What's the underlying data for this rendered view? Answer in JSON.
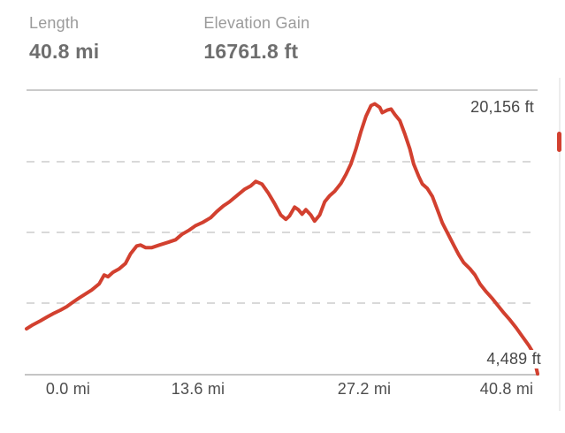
{
  "header": {
    "stats": [
      {
        "label": "Length",
        "value": "40.8 mi"
      },
      {
        "label": "Elevation Gain",
        "value": "16761.8 ft"
      }
    ]
  },
  "chart": {
    "max_label": "20,156 ft",
    "min_label": "4,489 ft",
    "x_ticks": [
      "0.0 mi",
      "13.6 mi",
      "27.2 mi",
      "40.8 mi"
    ]
  },
  "colors": {
    "line": "#d2402f",
    "grid_solid": "#cacaca",
    "grid_dashed": "#d9d9d9",
    "axis_text": "#4d4d4d",
    "stat_label": "#9b9b9b",
    "stat_value": "#6e6e6e"
  },
  "chart_data": {
    "type": "line",
    "title": "",
    "xlabel": "",
    "ylabel": "",
    "legend": "none",
    "grid": "3 dashed horizontal gridlines at 25%, 50%, 75% of range; solid line at top and bottom",
    "x_unit": "mi",
    "y_unit": "ft",
    "xlim": [
      0,
      40.8
    ],
    "ylim_display": [
      4489,
      20975
    ],
    "x_tick_labels": [
      "0.0 mi",
      "13.6 mi",
      "27.2 mi",
      "40.8 mi"
    ],
    "annotations": {
      "max": "20,156 ft",
      "min": "4,489 ft"
    },
    "stats": {
      "length_mi": 40.8,
      "elevation_gain_ft": 16761.8,
      "max_elevation_ft": 20156,
      "min_elevation_ft": 4489
    },
    "line_color": "#d2402f",
    "points": [
      [
        0.0,
        7100
      ],
      [
        0.5,
        7330
      ],
      [
        1.1,
        7560
      ],
      [
        1.6,
        7770
      ],
      [
        2.1,
        7970
      ],
      [
        2.7,
        8180
      ],
      [
        3.2,
        8380
      ],
      [
        3.7,
        8640
      ],
      [
        4.2,
        8890
      ],
      [
        4.7,
        9120
      ],
      [
        5.2,
        9350
      ],
      [
        5.8,
        9710
      ],
      [
        6.2,
        10220
      ],
      [
        6.5,
        10120
      ],
      [
        6.9,
        10380
      ],
      [
        7.4,
        10580
      ],
      [
        7.9,
        10890
      ],
      [
        8.3,
        11450
      ],
      [
        8.8,
        11910
      ],
      [
        9.1,
        11960
      ],
      [
        9.5,
        11810
      ],
      [
        10.0,
        11810
      ],
      [
        10.6,
        11960
      ],
      [
        11.3,
        12120
      ],
      [
        11.9,
        12270
      ],
      [
        12.4,
        12580
      ],
      [
        13.0,
        12830
      ],
      [
        13.5,
        13090
      ],
      [
        14.1,
        13290
      ],
      [
        14.7,
        13550
      ],
      [
        15.2,
        13910
      ],
      [
        15.7,
        14220
      ],
      [
        16.2,
        14470
      ],
      [
        16.8,
        14830
      ],
      [
        17.4,
        15190
      ],
      [
        17.9,
        15390
      ],
      [
        18.3,
        15650
      ],
      [
        18.8,
        15500
      ],
      [
        19.3,
        14980
      ],
      [
        19.8,
        14370
      ],
      [
        20.3,
        13700
      ],
      [
        20.7,
        13450
      ],
      [
        21.0,
        13650
      ],
      [
        21.4,
        14160
      ],
      [
        21.7,
        14010
      ],
      [
        22.0,
        13750
      ],
      [
        22.3,
        14010
      ],
      [
        22.7,
        13700
      ],
      [
        23.0,
        13350
      ],
      [
        23.4,
        13700
      ],
      [
        23.8,
        14470
      ],
      [
        24.2,
        14820
      ],
      [
        24.6,
        15080
      ],
      [
        25.1,
        15540
      ],
      [
        25.5,
        16060
      ],
      [
        25.9,
        16670
      ],
      [
        26.3,
        17540
      ],
      [
        26.7,
        18560
      ],
      [
        27.1,
        19430
      ],
      [
        27.5,
        20050
      ],
      [
        27.8,
        20156
      ],
      [
        28.2,
        19950
      ],
      [
        28.4,
        19640
      ],
      [
        28.8,
        19790
      ],
      [
        29.1,
        19850
      ],
      [
        29.4,
        19540
      ],
      [
        29.8,
        19180
      ],
      [
        30.2,
        18410
      ],
      [
        30.6,
        17540
      ],
      [
        30.9,
        16670
      ],
      [
        31.3,
        15960
      ],
      [
        31.6,
        15500
      ],
      [
        32.0,
        15240
      ],
      [
        32.4,
        14780
      ],
      [
        32.8,
        14010
      ],
      [
        33.2,
        13240
      ],
      [
        33.7,
        12530
      ],
      [
        34.1,
        11960
      ],
      [
        34.5,
        11400
      ],
      [
        34.9,
        10940
      ],
      [
        35.4,
        10580
      ],
      [
        35.8,
        10220
      ],
      [
        36.2,
        9710
      ],
      [
        36.7,
        9250
      ],
      [
        37.2,
        8840
      ],
      [
        37.6,
        8480
      ],
      [
        38.1,
        8020
      ],
      [
        38.6,
        7610
      ],
      [
        39.1,
        7150
      ],
      [
        39.6,
        6640
      ],
      [
        40.1,
        6130
      ],
      [
        40.4,
        5770
      ],
      [
        40.8,
        4489
      ]
    ]
  }
}
